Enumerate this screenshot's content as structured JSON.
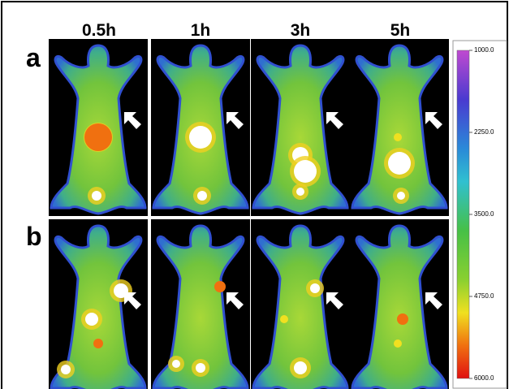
{
  "figure": {
    "columns": [
      "0.5h",
      "1h",
      "3h",
      "5h"
    ],
    "rows": [
      "a",
      "b"
    ],
    "colorbar": {
      "ticks": [
        {
          "value": 1000,
          "label": "1000.0"
        },
        {
          "value": 2250,
          "label": "2250.0"
        },
        {
          "value": 3500,
          "label": "3500.0"
        },
        {
          "value": 4750,
          "label": "4750.0"
        },
        {
          "value": 6000,
          "label": "6000.0"
        }
      ]
    }
  }
}
